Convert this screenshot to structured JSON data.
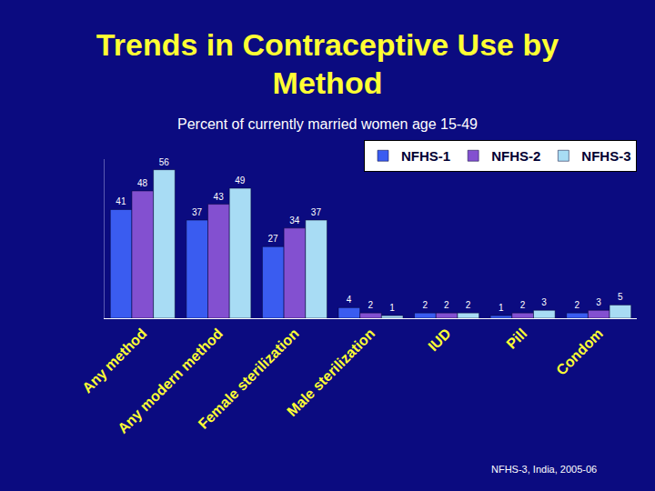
{
  "chart_data": {
    "type": "bar",
    "title": "Trends in Contraceptive Use by Method",
    "subtitle": "Percent of currently married women age 15-49",
    "note": "NFHS-3, India, 2005-06",
    "categories": [
      "Any method",
      "Any modern method",
      "Female sterilization",
      "Male sterilization",
      "IUD",
      "Pill",
      "Condom"
    ],
    "series": [
      {
        "name": "NFHS-1",
        "color": "#3a5cf0",
        "values": [
          41,
          37,
          27,
          4,
          2,
          1,
          2
        ]
      },
      {
        "name": "NFHS-2",
        "color": "#8350d0",
        "values": [
          48,
          43,
          34,
          2,
          2,
          2,
          3
        ]
      },
      {
        "name": "NFHS-3",
        "color": "#a8dcf4",
        "values": [
          56,
          49,
          37,
          1,
          2,
          3,
          5
        ]
      }
    ],
    "ylim": [
      0,
      60
    ],
    "grid": false,
    "legend": "top-right",
    "data_labels": true,
    "tick_labels": "x"
  }
}
